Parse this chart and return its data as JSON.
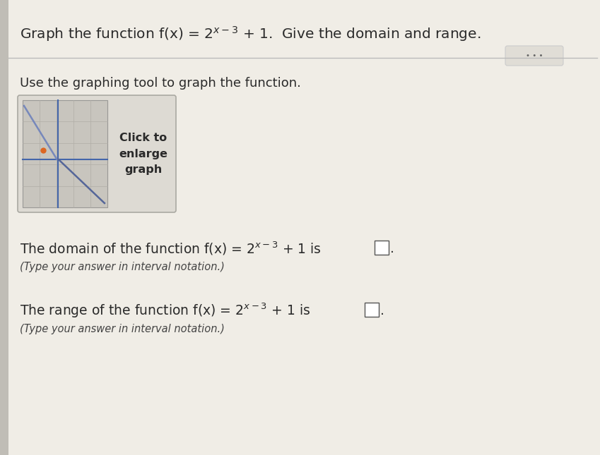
{
  "background_color": "#e8e5de",
  "page_bg": "#f0ede6",
  "title_text": "Graph the function f(x) = 2^{x-3} + 1.  Give the domain and range.",
  "subtitle": "Use the graphing tool to graph the function.",
  "domain_label": "The domain of the function f(x) = $2^{x-3}$ + 1 is",
  "range_label": "The range of the function f(x) = $2^{x-3}$ + 1 is",
  "interval_note": "(Type your answer in interval notation.)",
  "click_to": "Click to",
  "enlarge": "enlarge",
  "graph_word": "graph",
  "separator_color": "#bbbbbb",
  "text_color": "#2a2a2a",
  "light_text": "#444444",
  "thumb_outer_bg": "#d8d5ce",
  "thumb_outer_border": "#aaaaaa",
  "thumb_graph_bg": "#c8c5be",
  "thumb_graph_border": "#999999",
  "thumb_grid_color": "#b0ada6",
  "thumb_axis_color": "#5577aa",
  "thumb_line1_color": "#6688cc",
  "thumb_line2_color": "#8866aa",
  "thumb_dot_color": "#dd6622",
  "dots_btn_bg": "#e0ddd6",
  "dots_btn_border": "#cccccc",
  "answer_box_color": "#ffffff",
  "answer_box_border": "#555555"
}
